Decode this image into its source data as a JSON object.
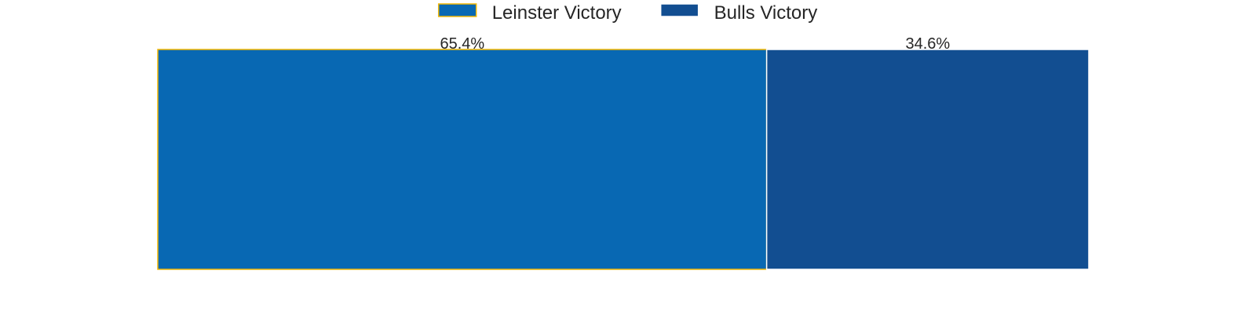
{
  "chart_data": {
    "type": "bar",
    "orientation": "horizontal-stacked",
    "title": "",
    "xlabel": "",
    "ylabel": "",
    "xlim": [
      0,
      100
    ],
    "grid": false,
    "legend_position": "top-center",
    "series": [
      {
        "name": "Leinster Victory",
        "value": 65.4,
        "label": "65.4%",
        "color": "#0868B3",
        "edge_color": "#F2B705"
      },
      {
        "name": "Bulls Victory",
        "value": 34.6,
        "label": "34.6%",
        "color": "#124E91",
        "edge_color": "#FFFFFF"
      }
    ]
  }
}
